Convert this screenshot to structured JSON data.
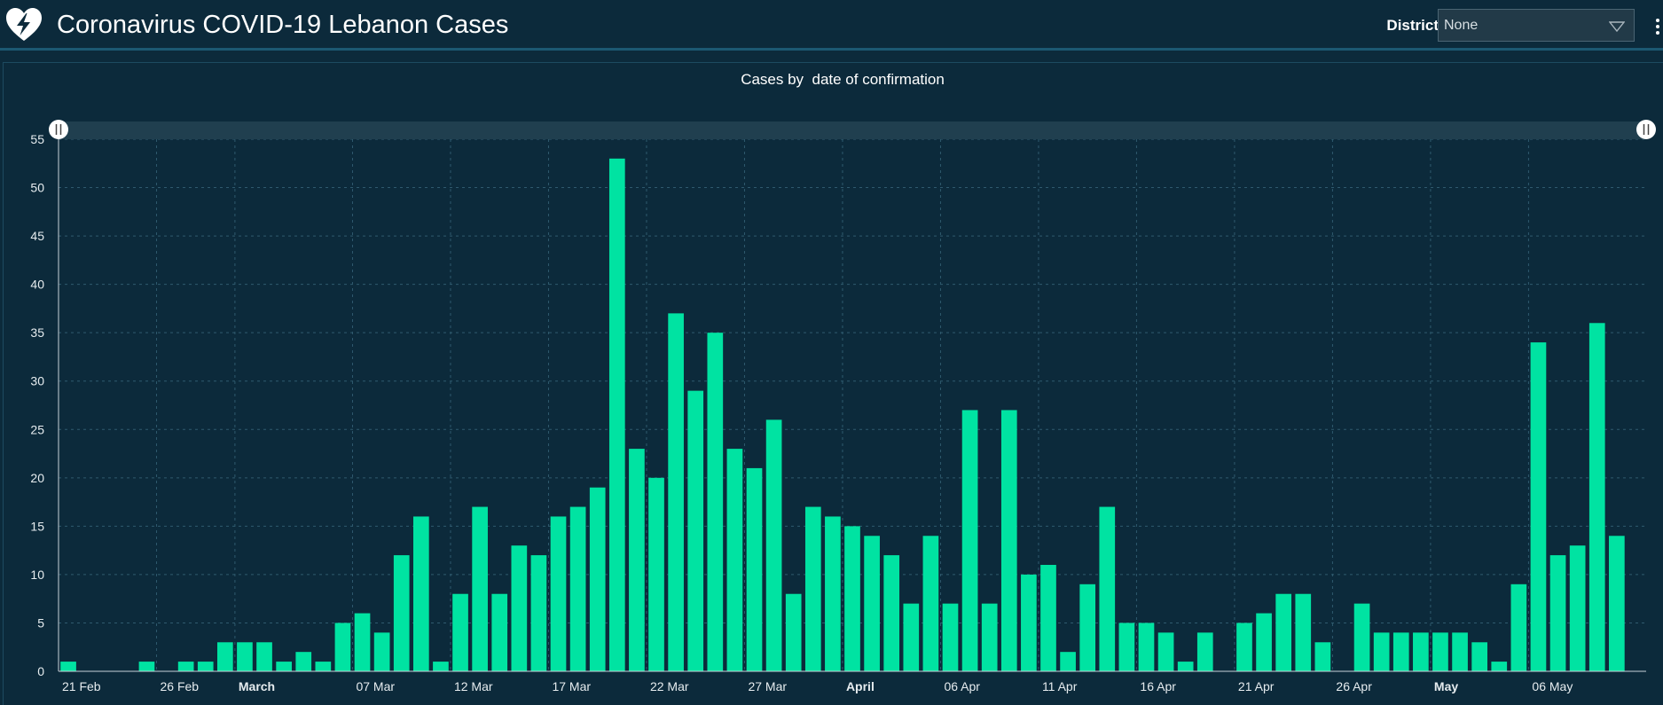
{
  "header": {
    "title": "Coronavirus COVID-19 Lebanon Cases",
    "logo_icon": "heart-bolt-icon",
    "district_label": "District",
    "district_value": "None",
    "menu_icon": "vertical-dots-icon"
  },
  "colors": {
    "background": "#0c2a3b",
    "bar": "#00e3a2",
    "grid": "#2f5a6e",
    "text": "#ffffff"
  },
  "chart_data": {
    "type": "bar",
    "title": "Cases by  date of confirmation",
    "xlabel": "",
    "ylabel": "",
    "ylim": [
      0,
      55
    ],
    "yticks": [
      0,
      5,
      10,
      15,
      20,
      25,
      30,
      35,
      40,
      45,
      50,
      55
    ],
    "grid": true,
    "legend": "none",
    "categories": [
      "2020-02-21",
      "2020-02-22",
      "2020-02-23",
      "2020-02-24",
      "2020-02-25",
      "2020-02-26",
      "2020-02-27",
      "2020-02-28",
      "2020-02-29",
      "2020-03-01",
      "2020-03-02",
      "2020-03-03",
      "2020-03-04",
      "2020-03-05",
      "2020-03-06",
      "2020-03-07",
      "2020-03-08",
      "2020-03-09",
      "2020-03-10",
      "2020-03-11",
      "2020-03-12",
      "2020-03-13",
      "2020-03-14",
      "2020-03-15",
      "2020-03-16",
      "2020-03-17",
      "2020-03-18",
      "2020-03-19",
      "2020-03-20",
      "2020-03-21",
      "2020-03-22",
      "2020-03-23",
      "2020-03-24",
      "2020-03-25",
      "2020-03-26",
      "2020-03-27",
      "2020-03-28",
      "2020-03-29",
      "2020-03-30",
      "2020-03-31",
      "2020-04-01",
      "2020-04-02",
      "2020-04-03",
      "2020-04-04",
      "2020-04-05",
      "2020-04-06",
      "2020-04-07",
      "2020-04-08",
      "2020-04-09",
      "2020-04-10",
      "2020-04-11",
      "2020-04-12",
      "2020-04-13",
      "2020-04-14",
      "2020-04-15",
      "2020-04-16",
      "2020-04-17",
      "2020-04-18",
      "2020-04-19",
      "2020-04-20",
      "2020-04-21",
      "2020-04-22",
      "2020-04-23",
      "2020-04-24",
      "2020-04-25",
      "2020-04-26",
      "2020-04-27",
      "2020-04-28",
      "2020-04-29",
      "2020-04-30",
      "2020-05-01",
      "2020-05-02",
      "2020-05-03",
      "2020-05-04",
      "2020-05-05",
      "2020-05-06",
      "2020-05-07",
      "2020-05-08",
      "2020-05-09",
      "2020-05-10",
      "2020-05-11"
    ],
    "values": [
      1,
      0,
      0,
      0,
      1,
      0,
      1,
      1,
      3,
      3,
      3,
      1,
      2,
      1,
      5,
      6,
      4,
      12,
      16,
      1,
      8,
      17,
      8,
      13,
      12,
      16,
      17,
      19,
      53,
      23,
      20,
      37,
      29,
      35,
      23,
      21,
      26,
      8,
      17,
      16,
      15,
      14,
      12,
      7,
      14,
      7,
      27,
      7,
      27,
      10,
      11,
      2,
      9,
      17,
      5,
      5,
      4,
      1,
      4,
      0,
      5,
      6,
      8,
      8,
      3,
      0,
      7,
      4,
      4,
      4,
      4,
      4,
      3,
      1,
      9,
      34,
      12,
      13,
      36,
      14,
      0
    ],
    "xtick_labels": [
      {
        "date": "2020-02-21",
        "label": "21 Feb",
        "bold": false
      },
      {
        "date": "2020-02-26",
        "label": "26 Feb",
        "bold": false
      },
      {
        "date": "2020-03-01",
        "label": "March",
        "bold": true
      },
      {
        "date": "2020-03-07",
        "label": "07 Mar",
        "bold": false
      },
      {
        "date": "2020-03-12",
        "label": "12 Mar",
        "bold": false
      },
      {
        "date": "2020-03-17",
        "label": "17 Mar",
        "bold": false
      },
      {
        "date": "2020-03-22",
        "label": "22 Mar",
        "bold": false
      },
      {
        "date": "2020-03-27",
        "label": "27 Mar",
        "bold": false
      },
      {
        "date": "2020-04-01",
        "label": "April",
        "bold": true
      },
      {
        "date": "2020-04-06",
        "label": "06 Apr",
        "bold": false
      },
      {
        "date": "2020-04-11",
        "label": "11 Apr",
        "bold": false
      },
      {
        "date": "2020-04-16",
        "label": "16 Apr",
        "bold": false
      },
      {
        "date": "2020-04-21",
        "label": "21 Apr",
        "bold": false
      },
      {
        "date": "2020-04-26",
        "label": "26 Apr",
        "bold": false
      },
      {
        "date": "2020-05-01",
        "label": "May",
        "bold": true
      },
      {
        "date": "2020-05-06",
        "label": "06 May",
        "bold": false
      }
    ]
  }
}
